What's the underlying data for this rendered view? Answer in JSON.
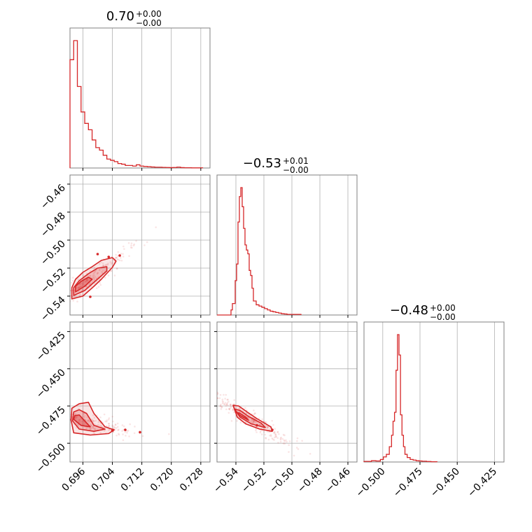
{
  "colors": {
    "accent": "#d62728",
    "grid": "#b0b0b0",
    "frame": "#808080"
  },
  "chart_data": [
    {
      "type": "histogram",
      "panel": "p00",
      "title": {
        "value": "0.70",
        "upper": "+0.00",
        "lower": "−0.00"
      },
      "xlim": [
        0.6925,
        0.7305
      ],
      "xticks": [
        0.696,
        0.704,
        0.712,
        0.72,
        0.728
      ],
      "edges": [
        0.6925,
        0.6935,
        0.6945,
        0.6955,
        0.6965,
        0.6975,
        0.6985,
        0.6995,
        0.7005,
        0.7015,
        0.7025,
        0.7035,
        0.7045,
        0.7055,
        0.7065,
        0.7075,
        0.7085,
        0.7095,
        0.7105,
        0.7115,
        0.7125,
        0.7135,
        0.7145,
        0.7155,
        0.7165,
        0.7175,
        0.7185,
        0.7195,
        0.7205,
        0.7215,
        0.7225,
        0.7235,
        0.7245,
        0.7255,
        0.7265,
        0.7275,
        0.7285
      ],
      "counts": [
        0.85,
        1.0,
        0.64,
        0.44,
        0.35,
        0.3,
        0.22,
        0.16,
        0.14,
        0.1,
        0.07,
        0.06,
        0.05,
        0.035,
        0.03,
        0.02,
        0.02,
        0.015,
        0.025,
        0.015,
        0.012,
        0.01,
        0.008,
        0.006,
        0.006,
        0.005,
        0.004,
        0.003,
        0.004,
        0.007,
        0.003,
        0.002,
        0.002,
        0.001,
        0.001,
        0.001
      ]
    },
    {
      "type": "histogram",
      "panel": "p11",
      "title": {
        "value": "−0.53",
        "upper": "+0.01",
        "lower": "−0.00"
      },
      "xlim": [
        -0.5535,
        -0.4535
      ],
      "xticks": [
        -0.54,
        -0.52,
        -0.5,
        -0.48,
        -0.46
      ],
      "tick_labels": [
        "−0.54",
        "−0.52",
        "−0.50",
        "−0.48",
        "−0.46"
      ],
      "edges": [
        -0.5535,
        -0.5435,
        -0.5425,
        -0.5405,
        -0.5395,
        -0.5385,
        -0.5375,
        -0.5365,
        -0.5355,
        -0.5345,
        -0.5335,
        -0.5325,
        -0.5315,
        -0.5305,
        -0.5295,
        -0.5285,
        -0.5275,
        -0.5255,
        -0.5235,
        -0.5215,
        -0.5195,
        -0.5175,
        -0.5155,
        -0.5135,
        -0.5115,
        -0.5095,
        -0.5075,
        -0.5055,
        -0.5035,
        -0.4935
      ],
      "counts": [
        0.0,
        0.04,
        0.09,
        0.27,
        0.4,
        0.73,
        0.93,
        1.0,
        0.85,
        0.68,
        0.55,
        0.51,
        0.48,
        0.35,
        0.31,
        0.21,
        0.11,
        0.08,
        0.07,
        0.06,
        0.05,
        0.04,
        0.03,
        0.025,
        0.02,
        0.015,
        0.01,
        0.008,
        0.005
      ]
    },
    {
      "type": "histogram",
      "panel": "p22",
      "title": {
        "value": "−0.48",
        "upper": "+0.00",
        "lower": "−0.00"
      },
      "xlim": [
        -0.5126,
        -0.4186
      ],
      "xticks": [
        -0.5,
        -0.475,
        -0.45,
        -0.425
      ],
      "tick_labels": [
        "−0.500",
        "−0.475",
        "−0.450",
        "−0.425"
      ],
      "edges": [
        -0.5126,
        -0.5076,
        -0.5046,
        -0.5016,
        -0.4996,
        -0.4976,
        -0.4956,
        -0.4941,
        -0.4931,
        -0.4921,
        -0.4911,
        -0.4901,
        -0.4891,
        -0.4881,
        -0.4871,
        -0.4861,
        -0.4851,
        -0.4836,
        -0.4816,
        -0.4796,
        -0.4776,
        -0.4756,
        -0.4736,
        -0.4706,
        -0.4676,
        -0.4636
      ],
      "counts": [
        0.005,
        0.01,
        0.008,
        0.02,
        0.04,
        0.06,
        0.12,
        0.21,
        0.32,
        0.39,
        0.72,
        1.0,
        0.84,
        0.37,
        0.21,
        0.12,
        0.06,
        0.035,
        0.02,
        0.015,
        0.01,
        0.008,
        0.006,
        0.004,
        0.002
      ]
    },
    {
      "type": "scatter-contour",
      "panel": "p10",
      "xlim": [
        0.6925,
        0.7305
      ],
      "ylim": [
        -0.5535,
        -0.4535
      ],
      "xticks": [
        0.696,
        0.704,
        0.712,
        0.72,
        0.728
      ],
      "yticks": [
        -0.46,
        -0.48,
        -0.5,
        -0.52,
        -0.54
      ],
      "ytick_labels": [
        "−0.46",
        "−0.48",
        "−0.50",
        "−0.52",
        "−0.54"
      ],
      "contour_outer": [
        [
          0.693,
          -0.542
        ],
        [
          0.696,
          -0.54
        ],
        [
          0.699,
          -0.533
        ],
        [
          0.701,
          -0.528
        ],
        [
          0.704,
          -0.5195
        ],
        [
          0.705,
          -0.515
        ],
        [
          0.704,
          -0.5125
        ],
        [
          0.701,
          -0.5145
        ],
        [
          0.6985,
          -0.519
        ],
        [
          0.696,
          -0.523
        ],
        [
          0.694,
          -0.528
        ],
        [
          0.693,
          -0.534
        ]
      ],
      "contour_mid": [
        [
          0.6935,
          -0.5395
        ],
        [
          0.6965,
          -0.536
        ],
        [
          0.6995,
          -0.529
        ],
        [
          0.7025,
          -0.522
        ],
        [
          0.7025,
          -0.519
        ],
        [
          0.7,
          -0.52
        ],
        [
          0.6975,
          -0.524
        ],
        [
          0.695,
          -0.529
        ],
        [
          0.6935,
          -0.534
        ]
      ],
      "contour_inner": [
        [
          0.694,
          -0.537
        ],
        [
          0.6965,
          -0.533
        ],
        [
          0.6985,
          -0.528
        ],
        [
          0.6975,
          -0.5265
        ],
        [
          0.6955,
          -0.5295
        ],
        [
          0.694,
          -0.533
        ]
      ],
      "points": [
        [
          0.703,
          -0.512
        ],
        [
          0.706,
          -0.511
        ],
        [
          0.698,
          -0.5405
        ],
        [
          0.7,
          -0.51
        ]
      ]
    },
    {
      "type": "scatter-contour",
      "panel": "p20",
      "xlim": [
        0.6925,
        0.7305
      ],
      "ylim": [
        -0.5126,
        -0.4186
      ],
      "xticks": [
        0.696,
        0.704,
        0.712,
        0.72,
        0.728
      ],
      "tick_labels": [
        "0.696",
        "0.704",
        "0.712",
        "0.720",
        "0.728"
      ],
      "yticks": [
        -0.425,
        -0.45,
        -0.475,
        -0.5
      ],
      "ytick_labels": [
        "−0.425",
        "−0.450",
        "−0.475",
        "−0.500"
      ],
      "contour_outer": [
        [
          0.6928,
          -0.4845
        ],
        [
          0.6935,
          -0.493
        ],
        [
          0.698,
          -0.4945
        ],
        [
          0.703,
          -0.4935
        ],
        [
          0.7045,
          -0.491
        ],
        [
          0.702,
          -0.489
        ],
        [
          0.699,
          -0.48
        ],
        [
          0.6975,
          -0.4725
        ],
        [
          0.695,
          -0.4735
        ],
        [
          0.693,
          -0.4765
        ]
      ],
      "contour_mid": [
        [
          0.6932,
          -0.485
        ],
        [
          0.695,
          -0.4905
        ],
        [
          0.699,
          -0.492
        ],
        [
          0.702,
          -0.4905
        ],
        [
          0.699,
          -0.488
        ],
        [
          0.697,
          -0.48
        ],
        [
          0.695,
          -0.4775
        ],
        [
          0.6935,
          -0.479
        ]
      ],
      "contour_inner": [
        [
          0.6935,
          -0.484
        ],
        [
          0.6955,
          -0.488
        ],
        [
          0.698,
          -0.489
        ],
        [
          0.6965,
          -0.485
        ],
        [
          0.695,
          -0.481
        ],
        [
          0.6938,
          -0.4815
        ]
      ],
      "points": [
        [
          0.7075,
          -0.491
        ],
        [
          0.7115,
          -0.4926
        ],
        [
          0.704,
          -0.4915
        ]
      ]
    },
    {
      "type": "scatter-contour",
      "panel": "p21",
      "xlim": [
        -0.5535,
        -0.4535
      ],
      "ylim": [
        -0.5126,
        -0.4186
      ],
      "xticks": [
        -0.54,
        -0.52,
        -0.5,
        -0.48,
        -0.46
      ],
      "tick_labels": [
        "−0.54",
        "−0.52",
        "−0.50",
        "−0.48",
        "−0.46"
      ],
      "yticks": [
        -0.425,
        -0.45,
        -0.475,
        -0.5
      ],
      "contour_outer": [
        [
          -0.542,
          -0.4745
        ],
        [
          -0.539,
          -0.4825
        ],
        [
          -0.533,
          -0.487
        ],
        [
          -0.523,
          -0.4905
        ],
        [
          -0.514,
          -0.492
        ],
        [
          -0.515,
          -0.489
        ],
        [
          -0.525,
          -0.4835
        ],
        [
          -0.532,
          -0.479
        ],
        [
          -0.538,
          -0.475
        ]
      ],
      "contour_mid": [
        [
          -0.541,
          -0.477
        ],
        [
          -0.537,
          -0.4825
        ],
        [
          -0.529,
          -0.487
        ],
        [
          -0.519,
          -0.4895
        ],
        [
          -0.522,
          -0.4865
        ],
        [
          -0.531,
          -0.482
        ],
        [
          -0.537,
          -0.478
        ]
      ],
      "contour_inner": [
        [
          -0.54,
          -0.479
        ],
        [
          -0.536,
          -0.482
        ],
        [
          -0.531,
          -0.4845
        ],
        [
          -0.533,
          -0.4825
        ],
        [
          -0.537,
          -0.48
        ]
      ],
      "points": [
        [
          -0.514,
          -0.491
        ],
        [
          -0.525,
          -0.488
        ]
      ]
    }
  ]
}
